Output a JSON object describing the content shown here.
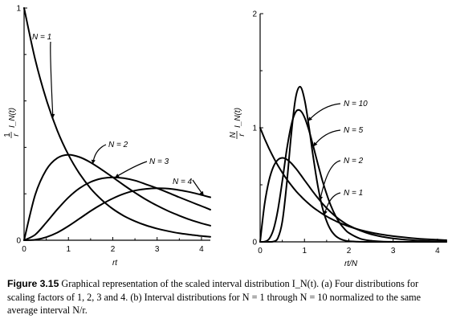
{
  "chart_data": [
    {
      "type": "line",
      "panel": "a",
      "title": "",
      "xlabel": "rt",
      "ylabel": "(1/r) I_N(t)",
      "xlim": [
        0,
        4.2
      ],
      "ylim": [
        0,
        1.0
      ],
      "xticks": [
        "0",
        "1",
        "2",
        "3",
        "4"
      ],
      "yticks": [
        "0",
        "1"
      ],
      "grid": false,
      "legend": "inline labels with arrows",
      "x": [
        0,
        0.25,
        0.5,
        0.75,
        1.0,
        1.25,
        1.5,
        1.75,
        2.0,
        2.25,
        2.5,
        2.75,
        3.0,
        3.25,
        3.5,
        3.75,
        4.0,
        4.2
      ],
      "series": [
        {
          "name": "N = 1",
          "values": [
            1.0,
            0.779,
            0.607,
            0.472,
            0.368,
            0.287,
            0.223,
            0.174,
            0.135,
            0.105,
            0.082,
            0.064,
            0.05,
            0.039,
            0.03,
            0.024,
            0.018,
            0.015
          ]
        },
        {
          "name": "N = 2",
          "values": [
            0.0,
            0.195,
            0.303,
            0.354,
            0.368,
            0.358,
            0.335,
            0.304,
            0.271,
            0.237,
            0.205,
            0.175,
            0.149,
            0.126,
            0.106,
            0.088,
            0.073,
            0.063
          ]
        },
        {
          "name": "N = 3",
          "values": [
            0.0,
            0.024,
            0.076,
            0.133,
            0.184,
            0.224,
            0.251,
            0.266,
            0.271,
            0.267,
            0.257,
            0.241,
            0.224,
            0.205,
            0.185,
            0.166,
            0.147,
            0.132
          ]
        },
        {
          "name": "N = 4",
          "values": [
            0.0,
            0.002,
            0.013,
            0.033,
            0.061,
            0.093,
            0.126,
            0.155,
            0.18,
            0.2,
            0.214,
            0.221,
            0.224,
            0.222,
            0.216,
            0.207,
            0.195,
            0.185
          ]
        }
      ]
    },
    {
      "type": "line",
      "panel": "b",
      "title": "",
      "xlabel": "rt/N",
      "ylabel": "(N/r) I_N(t)",
      "xlim": [
        0,
        4.2
      ],
      "ylim": [
        0,
        2.0
      ],
      "xticks": [
        "0",
        "1",
        "2",
        "3",
        "4"
      ],
      "yticks": [
        "0",
        "1",
        "2"
      ],
      "grid": false,
      "legend": "inline labels with arrows",
      "x": [
        0,
        0.1,
        0.2,
        0.3,
        0.4,
        0.5,
        0.6,
        0.7,
        0.8,
        0.9,
        1.0,
        1.1,
        1.2,
        1.3,
        1.4,
        1.5,
        1.6,
        1.7,
        1.8,
        1.9,
        2.0,
        2.25,
        2.5,
        2.75,
        3.0,
        3.5,
        4.0,
        4.2
      ],
      "series": [
        {
          "name": "N = 10",
          "values": [
            0.0,
            0.0,
            0.0,
            0.003,
            0.033,
            0.176,
            0.507,
            0.935,
            1.26,
            1.36,
            1.251,
            1.011,
            0.737,
            0.493,
            0.307,
            0.18,
            0.1,
            0.053,
            0.027,
            0.013,
            0.006,
            0.001,
            0.0,
            0.0,
            0.0,
            0.0,
            0.0,
            0.0
          ]
        },
        {
          "name": "N = 5",
          "values": [
            0.0,
            0.002,
            0.024,
            0.107,
            0.279,
            0.531,
            0.806,
            1.02,
            1.137,
            1.152,
            1.093,
            0.978,
            0.836,
            0.686,
            0.543,
            0.418,
            0.313,
            0.228,
            0.163,
            0.114,
            0.078,
            0.029,
            0.01,
            0.003,
            0.001,
            0.0,
            0.0,
            0.0
          ]
        },
        {
          "name": "N = 2",
          "values": [
            0.0,
            0.328,
            0.536,
            0.659,
            0.719,
            0.736,
            0.723,
            0.69,
            0.646,
            0.595,
            0.541,
            0.488,
            0.435,
            0.385,
            0.338,
            0.296,
            0.258,
            0.223,
            0.193,
            0.166,
            0.143,
            0.1,
            0.067,
            0.045,
            0.03,
            0.013,
            0.005,
            0.004
          ]
        },
        {
          "name": "N = 1",
          "values": [
            1.0,
            0.905,
            0.819,
            0.741,
            0.67,
            0.607,
            0.549,
            0.497,
            0.449,
            0.407,
            0.368,
            0.333,
            0.301,
            0.273,
            0.247,
            0.223,
            0.202,
            0.183,
            0.165,
            0.15,
            0.135,
            0.105,
            0.082,
            0.064,
            0.05,
            0.03,
            0.018,
            0.015
          ]
        }
      ]
    }
  ],
  "labels": {
    "a_ylabel": "I_N(t)",
    "a_ylabel_frac_top": "1",
    "a_ylabel_frac_bottom": "r",
    "b_ylabel": "I_N(t)",
    "b_ylabel_frac_top": "N",
    "b_ylabel_frac_bottom": "r"
  },
  "caption": {
    "fig_num": "Figure 3.15",
    "text": "Graphical representation of the scaled interval distribution I_N(t). (a) Four distributions for scaling factors of 1, 2, 3 and 4. (b) Interval distributions for N = 1 through N = 10 normalized to the same average interval N/r."
  }
}
